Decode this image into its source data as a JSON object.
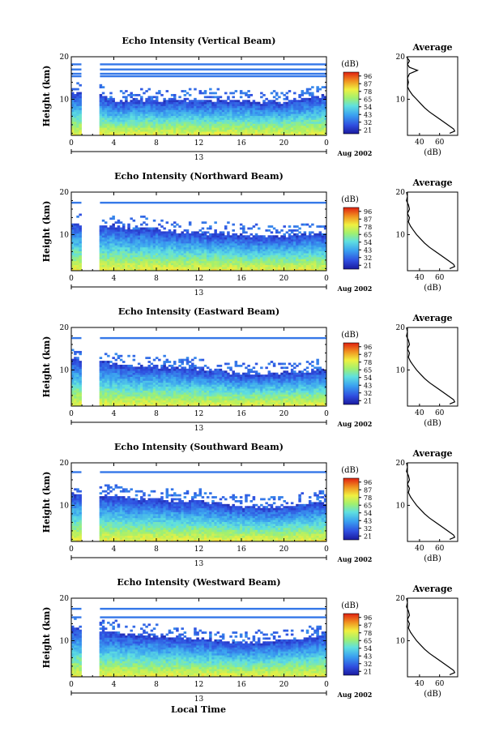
{
  "figure": {
    "x_axis_label": "Local Time",
    "date_label": "Aug 2002",
    "y_axis_label": "Height (km)",
    "colorbar_unit": "(dB)",
    "colorbar_ticks": [
      "96",
      "87",
      "78",
      "65",
      "54",
      "43",
      "32",
      "21"
    ],
    "profile_title": "Average",
    "profile_xlabel": "(dB)",
    "profile_xticks": [
      "40",
      "60"
    ],
    "x_ticks": [
      "0",
      "4",
      "8",
      "12",
      "16",
      "20",
      "0"
    ],
    "day_label": "13",
    "y_ticks": [
      "20",
      "10"
    ]
  },
  "chart_data": [
    {
      "type": "heatmap",
      "title": "Echo Intensity (Vertical Beam)",
      "xlim": [
        0,
        24
      ],
      "ylim": [
        1.5,
        20
      ],
      "zlim": [
        21,
        96
      ],
      "colorbar_ticks": [
        96,
        87,
        78,
        65,
        54,
        43,
        32,
        21
      ],
      "gap_hours": [
        1.0,
        2.6
      ],
      "echo_top_km": {
        "hours": [
          0,
          2,
          4,
          6,
          8,
          10,
          12,
          14,
          16,
          18,
          20,
          22,
          24
        ],
        "values": [
          11.5,
          11.5,
          9.5,
          9.8,
          9.8,
          10.0,
          9.6,
          9.8,
          9.8,
          9.4,
          9.3,
          10.2,
          10.8
        ]
      },
      "upper_layer_km": [
        18.2,
        17.0,
        16.0,
        15.4
      ]
    },
    {
      "type": "heatmap",
      "title": "Echo Intensity (Northward Beam)",
      "xlim": [
        0,
        24
      ],
      "ylim": [
        1.5,
        20
      ],
      "zlim": [
        21,
        96
      ],
      "colorbar_ticks": [
        96,
        87,
        78,
        65,
        54,
        43,
        32,
        21
      ],
      "gap_hours": [
        1.0,
        2.6
      ],
      "echo_top_km": {
        "hours": [
          0,
          2,
          4,
          6,
          8,
          10,
          12,
          14,
          16,
          18,
          20,
          22,
          24
        ],
        "values": [
          12.5,
          12.5,
          12.0,
          11.5,
          11.2,
          10.8,
          10.5,
          10.2,
          9.8,
          9.5,
          9.8,
          10.2,
          10.0
        ]
      },
      "upper_layer_km": [
        17.5
      ]
    },
    {
      "type": "heatmap",
      "title": "Echo Intensity (Eastward Beam)",
      "xlim": [
        0,
        24
      ],
      "ylim": [
        1.5,
        20
      ],
      "zlim": [
        21,
        96
      ],
      "colorbar_ticks": [
        96,
        87,
        78,
        65,
        54,
        43,
        32,
        21
      ],
      "gap_hours": [
        1.0,
        2.6
      ],
      "echo_top_km": {
        "hours": [
          0,
          2,
          4,
          6,
          8,
          10,
          12,
          14,
          16,
          18,
          20,
          22,
          24
        ],
        "values": [
          12.5,
          12.5,
          11.5,
          11.0,
          10.8,
          10.5,
          10.2,
          9.8,
          9.0,
          9.0,
          9.5,
          9.8,
          10.0
        ]
      },
      "upper_layer_km": [
        17.5
      ]
    },
    {
      "type": "heatmap",
      "title": "Echo Intensity (Southward Beam)",
      "xlim": [
        0,
        24
      ],
      "ylim": [
        1.5,
        20
      ],
      "zlim": [
        21,
        96
      ],
      "colorbar_ticks": [
        96,
        87,
        78,
        65,
        54,
        43,
        32,
        21
      ],
      "gap_hours": [
        1.0,
        2.6
      ],
      "echo_top_km": {
        "hours": [
          0,
          2,
          4,
          6,
          8,
          10,
          12,
          14,
          16,
          18,
          20,
          22,
          24
        ],
        "values": [
          12.8,
          12.8,
          12.0,
          11.5,
          11.2,
          11.0,
          11.0,
          10.5,
          9.8,
          9.5,
          9.8,
          10.2,
          10.8
        ]
      },
      "upper_layer_km": [
        17.8
      ]
    },
    {
      "type": "heatmap",
      "title": "Echo Intensity (Westward Beam)",
      "xlim": [
        0,
        24
      ],
      "ylim": [
        1.5,
        20
      ],
      "zlim": [
        21,
        96
      ],
      "colorbar_ticks": [
        96,
        87,
        78,
        65,
        54,
        43,
        32,
        21
      ],
      "gap_hours": [
        1.0,
        2.6
      ],
      "echo_top_km": {
        "hours": [
          0,
          2,
          4,
          6,
          8,
          10,
          12,
          14,
          16,
          18,
          20,
          22,
          24
        ],
        "values": [
          12.8,
          12.8,
          12.0,
          11.5,
          11.0,
          10.8,
          10.5,
          10.0,
          9.5,
          9.8,
          10.2,
          10.8,
          11.0
        ]
      },
      "upper_layer_km": [
        17.5,
        15.5
      ]
    }
  ],
  "profile_data": [
    {
      "type": "line",
      "title": "Average",
      "xlim": [
        28,
        78
      ],
      "ylim": [
        1.5,
        20
      ],
      "heights": [
        2.0,
        2.5,
        3,
        4,
        5,
        6,
        7,
        8,
        9,
        10,
        11,
        12,
        13,
        14,
        15,
        16,
        16.8,
        17.5,
        18.2,
        19,
        20
      ],
      "values": [
        70,
        75,
        74,
        68,
        62,
        56,
        50,
        45,
        41,
        37,
        33,
        30,
        28,
        29,
        28,
        30,
        38,
        30,
        28,
        30,
        27
      ]
    },
    {
      "type": "line",
      "title": "Average",
      "xlim": [
        28,
        78
      ],
      "ylim": [
        1.5,
        20
      ],
      "heights": [
        2.0,
        2.5,
        3,
        4,
        5,
        6,
        7,
        8,
        9,
        10,
        11,
        12,
        13,
        14,
        15,
        16,
        17,
        18,
        19,
        20
      ],
      "values": [
        70,
        75,
        74,
        68,
        62,
        56,
        50,
        45,
        41,
        37,
        34,
        31,
        29,
        30,
        28,
        30,
        29,
        27,
        28,
        27
      ]
    },
    {
      "type": "line",
      "title": "Average",
      "xlim": [
        28,
        78
      ],
      "ylim": [
        1.5,
        20
      ],
      "heights": [
        2.0,
        2.5,
        3,
        4,
        5,
        6,
        7,
        8,
        9,
        10,
        11,
        12,
        13,
        14,
        15,
        16,
        17,
        18,
        19,
        20
      ],
      "values": [
        70,
        75,
        74,
        68,
        62,
        56,
        50,
        45,
        41,
        37,
        34,
        31,
        29,
        30,
        28,
        30,
        29,
        27,
        28,
        27
      ]
    },
    {
      "type": "line",
      "title": "Average",
      "xlim": [
        28,
        78
      ],
      "ylim": [
        1.5,
        20
      ],
      "heights": [
        2.0,
        2.5,
        3,
        4,
        5,
        6,
        7,
        8,
        9,
        10,
        11,
        12,
        13,
        14,
        15,
        16,
        17,
        18,
        19,
        20
      ],
      "values": [
        70,
        75,
        74,
        68,
        62,
        56,
        50,
        45,
        41,
        37,
        34,
        31,
        29,
        30,
        28,
        30,
        29,
        27,
        28,
        27
      ]
    },
    {
      "type": "line",
      "title": "Average",
      "xlim": [
        28,
        78
      ],
      "ylim": [
        1.5,
        20
      ],
      "heights": [
        2.0,
        2.5,
        3,
        4,
        5,
        6,
        7,
        8,
        9,
        10,
        11,
        12,
        13,
        14,
        15,
        16,
        17,
        18,
        19,
        20
      ],
      "values": [
        70,
        75,
        74,
        68,
        62,
        56,
        50,
        45,
        41,
        37,
        34,
        31,
        29,
        30,
        28,
        30,
        29,
        27,
        28,
        27
      ]
    }
  ]
}
